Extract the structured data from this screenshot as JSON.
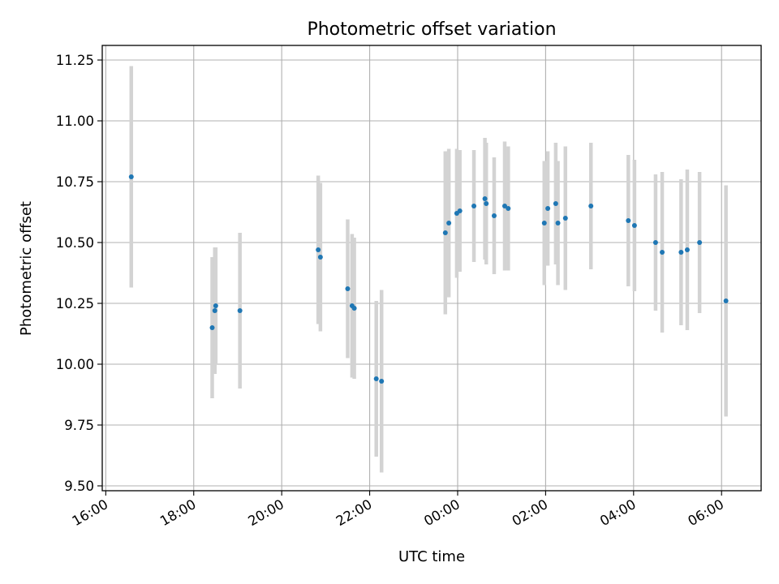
{
  "chart_data": {
    "type": "scatter",
    "title": "Photometric offset variation",
    "xlabel": "UTC time",
    "ylabel": "Photometric offset",
    "x_unit": "hours",
    "xlim": [
      15.92,
      30.9
    ],
    "ylim": [
      9.48,
      11.31
    ],
    "grid": true,
    "x_ticks": [
      {
        "value": 16,
        "label": "16:00"
      },
      {
        "value": 18,
        "label": "18:00"
      },
      {
        "value": 20,
        "label": "20:00"
      },
      {
        "value": 22,
        "label": "22:00"
      },
      {
        "value": 24,
        "label": "00:00"
      },
      {
        "value": 26,
        "label": "02:00"
      },
      {
        "value": 28,
        "label": "04:00"
      },
      {
        "value": 30,
        "label": "06:00"
      }
    ],
    "y_ticks": [
      {
        "value": 9.5,
        "label": "9.50"
      },
      {
        "value": 9.75,
        "label": "9.75"
      },
      {
        "value": 10.0,
        "label": "10.00"
      },
      {
        "value": 10.25,
        "label": "10.25"
      },
      {
        "value": 10.5,
        "label": "10.50"
      },
      {
        "value": 10.75,
        "label": "10.75"
      },
      {
        "value": 11.0,
        "label": "11.00"
      },
      {
        "value": 11.25,
        "label": "11.25"
      }
    ],
    "colors": {
      "marker": "#1f77b4",
      "errorbar": "#d3d3d3",
      "grid": "#b0b0b0"
    },
    "points": [
      {
        "x": 16.58,
        "y": 10.77,
        "err": 0.455
      },
      {
        "x": 18.42,
        "y": 10.15,
        "err": 0.29
      },
      {
        "x": 18.48,
        "y": 10.22,
        "err": 0.26
      },
      {
        "x": 18.5,
        "y": 10.24,
        "err": 0.24
      },
      {
        "x": 19.05,
        "y": 10.22,
        "err": 0.32
      },
      {
        "x": 20.83,
        "y": 10.47,
        "err": 0.305
      },
      {
        "x": 20.88,
        "y": 10.44,
        "err": 0.305
      },
      {
        "x": 21.5,
        "y": 10.31,
        "err": 0.285
      },
      {
        "x": 21.6,
        "y": 10.24,
        "err": 0.295
      },
      {
        "x": 21.65,
        "y": 10.23,
        "err": 0.29
      },
      {
        "x": 22.15,
        "y": 9.94,
        "err": 0.32
      },
      {
        "x": 22.27,
        "y": 9.93,
        "err": 0.375
      },
      {
        "x": 23.72,
        "y": 10.54,
        "err": 0.335
      },
      {
        "x": 23.8,
        "y": 10.58,
        "err": 0.305
      },
      {
        "x": 23.98,
        "y": 10.62,
        "err": 0.265
      },
      {
        "x": 24.05,
        "y": 10.63,
        "err": 0.25
      },
      {
        "x": 24.37,
        "y": 10.65,
        "err": 0.23
      },
      {
        "x": 24.62,
        "y": 10.68,
        "err": 0.25
      },
      {
        "x": 24.65,
        "y": 10.66,
        "err": 0.25
      },
      {
        "x": 24.83,
        "y": 10.61,
        "err": 0.24
      },
      {
        "x": 25.07,
        "y": 10.65,
        "err": 0.265
      },
      {
        "x": 25.15,
        "y": 10.64,
        "err": 0.255
      },
      {
        "x": 25.97,
        "y": 10.58,
        "err": 0.255
      },
      {
        "x": 26.05,
        "y": 10.64,
        "err": 0.235
      },
      {
        "x": 26.23,
        "y": 10.66,
        "err": 0.25
      },
      {
        "x": 26.28,
        "y": 10.58,
        "err": 0.255
      },
      {
        "x": 26.45,
        "y": 10.6,
        "err": 0.295
      },
      {
        "x": 27.03,
        "y": 10.65,
        "err": 0.26
      },
      {
        "x": 27.88,
        "y": 10.59,
        "err": 0.27
      },
      {
        "x": 28.02,
        "y": 10.57,
        "err": 0.27
      },
      {
        "x": 28.5,
        "y": 10.5,
        "err": 0.28
      },
      {
        "x": 28.65,
        "y": 10.46,
        "err": 0.33
      },
      {
        "x": 29.08,
        "y": 10.46,
        "err": 0.3
      },
      {
        "x": 29.22,
        "y": 10.47,
        "err": 0.33
      },
      {
        "x": 29.5,
        "y": 10.5,
        "err": 0.29
      },
      {
        "x": 30.1,
        "y": 10.26,
        "err": 0.475
      }
    ]
  }
}
